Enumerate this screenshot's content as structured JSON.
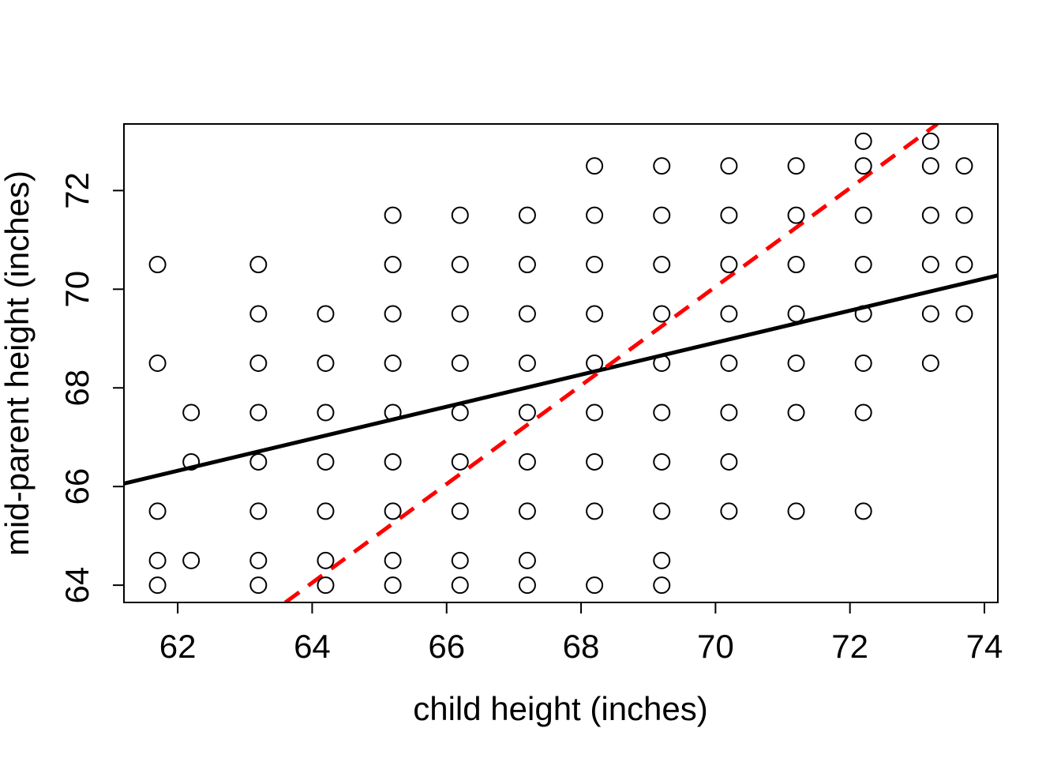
{
  "chart_data": {
    "type": "scatter",
    "title": "",
    "xlabel": "child height (inches)",
    "ylabel": "mid-parent height (inches)",
    "xlim": [
      61.2,
      74.2
    ],
    "ylim": [
      63.65,
      73.35
    ],
    "x_ticks": [
      "62",
      "64",
      "66",
      "68",
      "70",
      "72",
      "74"
    ],
    "y_ticks": [
      "64",
      "66",
      "68",
      "70",
      "72"
    ],
    "grid": false,
    "legend": "none",
    "point_style": "open-circle",
    "colors": {
      "points": "#000000",
      "regression_line": "#000000",
      "identity_line": "#ff0000"
    },
    "points": [
      [
        61.7,
        70.5
      ],
      [
        61.7,
        68.5
      ],
      [
        61.7,
        65.5
      ],
      [
        61.7,
        64.5
      ],
      [
        61.7,
        64.0
      ],
      [
        62.2,
        67.5
      ],
      [
        62.2,
        66.5
      ],
      [
        62.2,
        64.5
      ],
      [
        63.2,
        70.5
      ],
      [
        63.2,
        69.5
      ],
      [
        63.2,
        68.5
      ],
      [
        63.2,
        67.5
      ],
      [
        63.2,
        66.5
      ],
      [
        63.2,
        65.5
      ],
      [
        63.2,
        64.5
      ],
      [
        63.2,
        64.0
      ],
      [
        64.2,
        69.5
      ],
      [
        64.2,
        68.5
      ],
      [
        64.2,
        67.5
      ],
      [
        64.2,
        66.5
      ],
      [
        64.2,
        65.5
      ],
      [
        64.2,
        64.5
      ],
      [
        64.2,
        64.0
      ],
      [
        65.2,
        71.5
      ],
      [
        65.2,
        70.5
      ],
      [
        65.2,
        69.5
      ],
      [
        65.2,
        68.5
      ],
      [
        65.2,
        67.5
      ],
      [
        65.2,
        66.5
      ],
      [
        65.2,
        65.5
      ],
      [
        65.2,
        64.5
      ],
      [
        65.2,
        64.0
      ],
      [
        66.2,
        71.5
      ],
      [
        66.2,
        70.5
      ],
      [
        66.2,
        69.5
      ],
      [
        66.2,
        68.5
      ],
      [
        66.2,
        67.5
      ],
      [
        66.2,
        66.5
      ],
      [
        66.2,
        65.5
      ],
      [
        66.2,
        64.5
      ],
      [
        66.2,
        64.0
      ],
      [
        67.2,
        71.5
      ],
      [
        67.2,
        70.5
      ],
      [
        67.2,
        69.5
      ],
      [
        67.2,
        68.5
      ],
      [
        67.2,
        67.5
      ],
      [
        67.2,
        66.5
      ],
      [
        67.2,
        65.5
      ],
      [
        67.2,
        64.5
      ],
      [
        67.2,
        64.0
      ],
      [
        68.2,
        72.5
      ],
      [
        68.2,
        71.5
      ],
      [
        68.2,
        70.5
      ],
      [
        68.2,
        69.5
      ],
      [
        68.2,
        68.5
      ],
      [
        68.2,
        67.5
      ],
      [
        68.2,
        66.5
      ],
      [
        68.2,
        65.5
      ],
      [
        68.2,
        64.0
      ],
      [
        69.2,
        72.5
      ],
      [
        69.2,
        71.5
      ],
      [
        69.2,
        70.5
      ],
      [
        69.2,
        69.5
      ],
      [
        69.2,
        68.5
      ],
      [
        69.2,
        67.5
      ],
      [
        69.2,
        66.5
      ],
      [
        69.2,
        65.5
      ],
      [
        69.2,
        64.5
      ],
      [
        69.2,
        64.0
      ],
      [
        70.2,
        72.5
      ],
      [
        70.2,
        71.5
      ],
      [
        70.2,
        70.5
      ],
      [
        70.2,
        69.5
      ],
      [
        70.2,
        68.5
      ],
      [
        70.2,
        67.5
      ],
      [
        70.2,
        66.5
      ],
      [
        70.2,
        65.5
      ],
      [
        71.2,
        72.5
      ],
      [
        71.2,
        71.5
      ],
      [
        71.2,
        70.5
      ],
      [
        71.2,
        69.5
      ],
      [
        71.2,
        68.5
      ],
      [
        71.2,
        67.5
      ],
      [
        71.2,
        65.5
      ],
      [
        72.2,
        73.0
      ],
      [
        72.2,
        72.5
      ],
      [
        72.2,
        71.5
      ],
      [
        72.2,
        70.5
      ],
      [
        72.2,
        69.5
      ],
      [
        72.2,
        68.5
      ],
      [
        72.2,
        67.5
      ],
      [
        72.2,
        65.5
      ],
      [
        73.2,
        73.0
      ],
      [
        73.2,
        72.5
      ],
      [
        73.2,
        71.5
      ],
      [
        73.2,
        70.5
      ],
      [
        73.2,
        69.5
      ],
      [
        73.2,
        68.5
      ],
      [
        73.7,
        72.5
      ],
      [
        73.7,
        71.5
      ],
      [
        73.7,
        70.5
      ],
      [
        73.7,
        69.5
      ]
    ],
    "lines": [
      {
        "style": "solid",
        "color": "#000000",
        "points": [
          [
            61.2,
            66.06
          ],
          [
            74.2,
            70.28
          ]
        ]
      },
      {
        "style": "dashed",
        "color": "#ff0000",
        "points": [
          [
            63.6,
            63.65
          ],
          [
            73.3,
            73.35
          ]
        ]
      }
    ]
  }
}
